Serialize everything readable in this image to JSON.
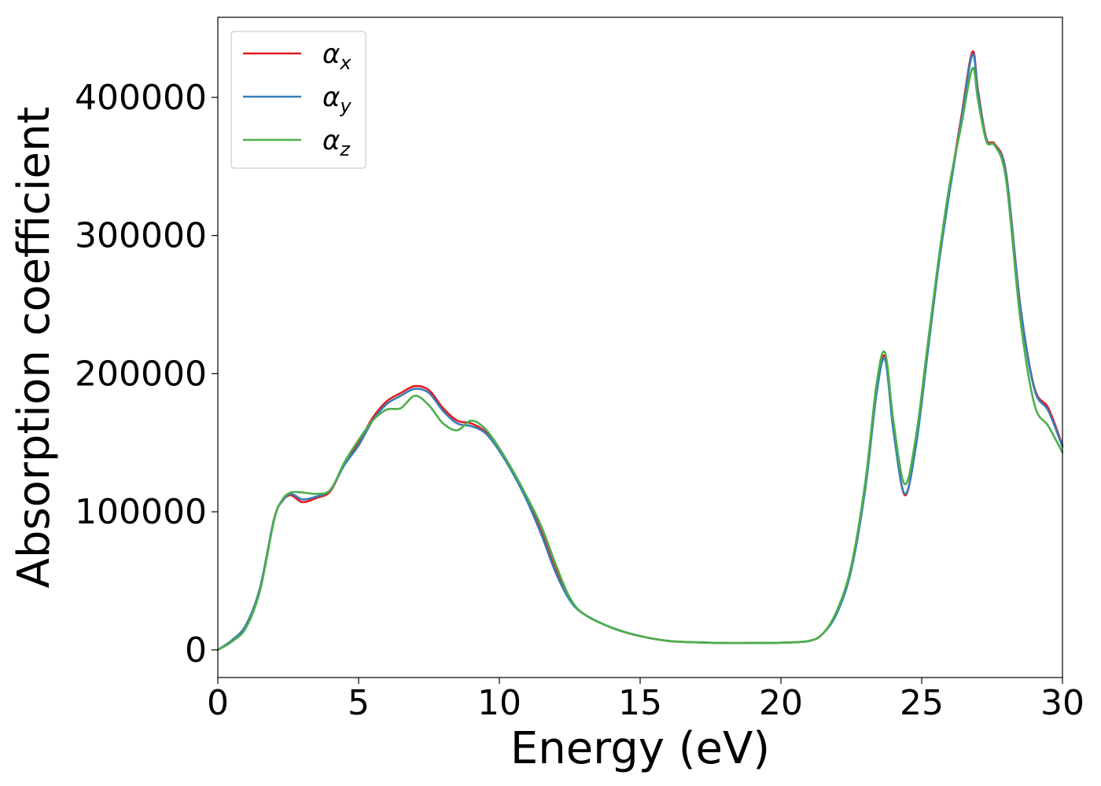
{
  "chart_data": {
    "type": "line",
    "title": "",
    "xlabel": "Energy (eV)",
    "ylabel": "Absorption coefficient",
    "xlim": [
      0,
      30
    ],
    "ylim": [
      -20000,
      458000
    ],
    "xticks": [
      0,
      5,
      10,
      15,
      20,
      25,
      30
    ],
    "yticks": [
      0,
      100000,
      200000,
      300000,
      400000
    ],
    "grid": false,
    "legend_position": "top-left",
    "series": [
      {
        "name": "α",
        "subscript": "x",
        "color": "#e41a1c",
        "x": [
          0,
          0.5,
          1.0,
          1.5,
          2.0,
          2.3,
          2.6,
          3.0,
          3.5,
          4.0,
          4.5,
          5.0,
          5.5,
          6.0,
          6.5,
          7.0,
          7.5,
          8.0,
          8.5,
          9.0,
          9.5,
          10.0,
          10.5,
          11.0,
          11.5,
          12.0,
          12.5,
          13.0,
          14.0,
          15.0,
          16.0,
          17.0,
          18.0,
          19.0,
          20.0,
          21.0,
          21.5,
          22.0,
          22.5,
          23.0,
          23.4,
          23.7,
          24.0,
          24.4,
          24.8,
          25.2,
          25.6,
          26.0,
          26.4,
          26.8,
          27.0,
          27.3,
          27.6,
          28.0,
          28.5,
          29.0,
          29.5,
          30.0
        ],
        "y": [
          0,
          7000,
          18000,
          45000,
          95000,
          108000,
          112000,
          107000,
          110000,
          115000,
          135000,
          150000,
          168000,
          180000,
          186000,
          191000,
          188000,
          175000,
          166000,
          164000,
          158000,
          145000,
          128000,
          108000,
          85000,
          58000,
          37000,
          26000,
          16000,
          10000,
          6500,
          5500,
          5000,
          5000,
          5200,
          6500,
          12000,
          28000,
          60000,
          120000,
          190000,
          212000,
          160000,
          112000,
          150000,
          215000,
          280000,
          335000,
          385000,
          433000,
          405000,
          370000,
          366000,
          345000,
          250000,
          190000,
          175000,
          148000
        ]
      },
      {
        "name": "α",
        "subscript": "y",
        "color": "#377eb8",
        "x": [
          0,
          0.5,
          1.0,
          1.5,
          2.0,
          2.3,
          2.6,
          3.0,
          3.5,
          4.0,
          4.5,
          5.0,
          5.5,
          6.0,
          6.5,
          7.0,
          7.5,
          8.0,
          8.5,
          9.0,
          9.5,
          10.0,
          10.5,
          11.0,
          11.5,
          12.0,
          12.5,
          13.0,
          14.0,
          15.0,
          16.0,
          17.0,
          18.0,
          19.0,
          20.0,
          21.0,
          21.5,
          22.0,
          22.5,
          23.0,
          23.4,
          23.7,
          24.0,
          24.4,
          24.8,
          25.2,
          25.6,
          26.0,
          26.4,
          26.8,
          27.0,
          27.3,
          27.6,
          28.0,
          28.5,
          29.0,
          29.5,
          30.0
        ],
        "y": [
          0,
          7000,
          18000,
          45000,
          95000,
          108000,
          113000,
          109000,
          111000,
          116000,
          134000,
          148000,
          166000,
          178000,
          184000,
          189000,
          186000,
          173000,
          164000,
          162000,
          157000,
          144000,
          127000,
          107000,
          83000,
          56000,
          36000,
          26000,
          16000,
          10000,
          6500,
          5500,
          5000,
          5000,
          5200,
          6500,
          12000,
          27000,
          58000,
          117000,
          186000,
          210000,
          158000,
          113000,
          148000,
          213000,
          278000,
          333000,
          383000,
          431000,
          403000,
          369000,
          365000,
          344000,
          249000,
          189000,
          173000,
          147000
        ]
      },
      {
        "name": "α",
        "subscript": "z",
        "color": "#4daf4a",
        "x": [
          0,
          0.5,
          1.0,
          1.5,
          2.0,
          2.3,
          2.6,
          3.0,
          3.5,
          4.0,
          4.5,
          5.0,
          5.5,
          6.0,
          6.5,
          7.0,
          7.5,
          8.0,
          8.5,
          9.0,
          9.5,
          10.0,
          10.5,
          11.0,
          11.5,
          12.0,
          12.5,
          13.0,
          14.0,
          15.0,
          16.0,
          17.0,
          18.0,
          19.0,
          20.0,
          21.0,
          21.5,
          22.0,
          22.5,
          23.0,
          23.4,
          23.7,
          24.0,
          24.4,
          24.8,
          25.2,
          25.6,
          26.0,
          26.4,
          26.8,
          27.0,
          27.3,
          27.6,
          28.0,
          28.5,
          29.0,
          29.5,
          30.0
        ],
        "y": [
          0,
          6000,
          16000,
          43000,
          94000,
          109000,
          114000,
          114000,
          113000,
          116000,
          136000,
          152000,
          166000,
          174000,
          175000,
          184000,
          177000,
          164000,
          159000,
          166000,
          160000,
          146000,
          129000,
          110000,
          89000,
          62000,
          38000,
          26000,
          16000,
          10000,
          6500,
          5500,
          5000,
          5000,
          5200,
          6500,
          12000,
          29000,
          61000,
          122000,
          193000,
          215000,
          165000,
          120000,
          155000,
          219000,
          283000,
          338000,
          379000,
          421000,
          398000,
          368000,
          365000,
          340000,
          240000,
          178000,
          162000,
          143000
        ]
      }
    ]
  }
}
